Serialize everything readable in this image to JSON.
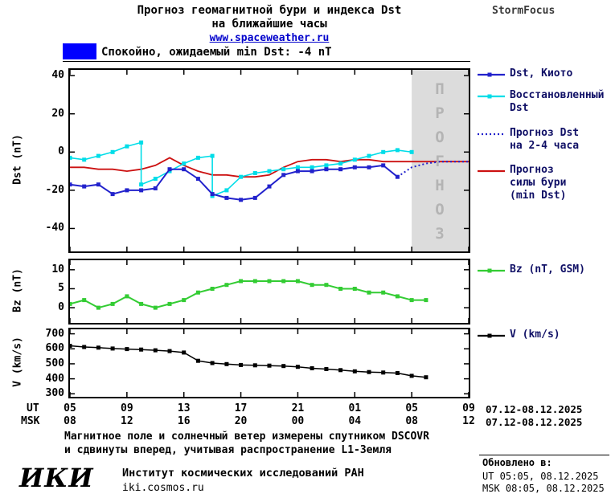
{
  "header": {
    "title_line1": "Прогноз геомагнитной бури и индекса Dst",
    "title_line2": "на ближайшие часы",
    "link": "www.spaceweather.ru",
    "brand": "StormFocus"
  },
  "status": {
    "swatch_color": "#0000ff",
    "text": "Спокойно, ожидаемый min Dst: -4 nT"
  },
  "forecast_band": {
    "label": "ПРОГНОЗ",
    "color": "#dcdcdc",
    "text_color": "#b4b4b4"
  },
  "legend_text_color": "#101066",
  "chart_data": [
    {
      "type": "line",
      "ylabel": "Dst (nT)",
      "ylim": [
        -52,
        43
      ],
      "yticks": [
        40,
        20,
        0,
        -20,
        -40
      ],
      "forecast_start_hour": 24,
      "series": [
        {
          "name": "Прогноз силы бури (min Dst)",
          "color": "#cc1111",
          "marker": false,
          "width": 1.8,
          "x": [
            0,
            1,
            2,
            3,
            4,
            5,
            6,
            7,
            8,
            9,
            10,
            11,
            12,
            13,
            14,
            15,
            16,
            17,
            18,
            19,
            20,
            21,
            22,
            23,
            24,
            25,
            26,
            27,
            28
          ],
          "values": [
            -8,
            -8,
            -9,
            -9,
            -10,
            -9,
            -7,
            -3,
            -7,
            -10,
            -12,
            -12,
            -13,
            -13,
            -12,
            -8,
            -5,
            -4,
            -4,
            -5,
            -4,
            -4,
            -5,
            -5,
            -5,
            -5,
            -5,
            -5,
            -5
          ]
        },
        {
          "name": "Восстановленный Dst",
          "color": "#00dde8",
          "marker": true,
          "width": 1.6,
          "x": [
            0,
            1,
            2,
            3,
            4,
            5,
            5,
            6,
            7,
            8,
            9,
            10,
            10,
            11,
            12,
            13,
            14,
            15,
            16,
            17,
            18,
            19,
            20,
            21,
            22,
            23,
            24
          ],
          "values": [
            -3,
            -4,
            -2,
            0,
            3,
            5,
            -17,
            -14,
            -10,
            -6,
            -3,
            -2,
            -23,
            -20,
            -13,
            -11,
            -10,
            -9,
            -8,
            -8,
            -7,
            -6,
            -4,
            -2,
            0,
            1,
            0
          ]
        },
        {
          "name": "Dst, Киото",
          "color": "#2222cc",
          "marker": true,
          "width": 2,
          "x": [
            0,
            1,
            2,
            3,
            4,
            5,
            6,
            7,
            8,
            9,
            10,
            11,
            12,
            13,
            14,
            15,
            16,
            17,
            18,
            19,
            20,
            21,
            22,
            23
          ],
          "values": [
            -17,
            -18,
            -17,
            -22,
            -20,
            -20,
            -19,
            -9,
            -9,
            -14,
            -22,
            -24,
            -25,
            -24,
            -18,
            -12,
            -10,
            -10,
            -9,
            -9,
            -8,
            -8,
            -7,
            -13
          ]
        },
        {
          "name": "Прогноз Dst на 2-4 часа",
          "color": "#2222cc",
          "marker": false,
          "dotted": true,
          "width": 2,
          "x": [
            23,
            24,
            25,
            26,
            27,
            28
          ],
          "values": [
            -13,
            -8,
            -6,
            -5,
            -5,
            -5
          ]
        }
      ]
    },
    {
      "type": "line",
      "ylabel": "Bz (nT)",
      "ylim": [
        -4,
        12.5
      ],
      "yticks": [
        10,
        5,
        0
      ],
      "series": [
        {
          "name": "Bz (nT, GSM)",
          "color": "#33cc33",
          "marker": true,
          "width": 2,
          "x": [
            0,
            1,
            2,
            3,
            4,
            5,
            6,
            7,
            8,
            9,
            10,
            11,
            12,
            13,
            14,
            15,
            16,
            17,
            18,
            19,
            20,
            21,
            22,
            23,
            24,
            25
          ],
          "values": [
            1,
            2,
            0,
            1,
            3,
            1,
            0,
            1,
            2,
            4,
            5,
            6,
            7,
            7,
            7,
            7,
            7,
            6,
            6,
            5,
            5,
            4,
            4,
            3,
            2,
            2
          ]
        }
      ]
    },
    {
      "type": "line",
      "ylabel": "V (km/s)",
      "ylim": [
        280,
        730
      ],
      "yticks": [
        700,
        600,
        500,
        400,
        300
      ],
      "series": [
        {
          "name": "V (km/s)",
          "color": "#000000",
          "marker": true,
          "width": 1.5,
          "x": [
            0,
            1,
            2,
            3,
            4,
            5,
            6,
            7,
            8,
            9,
            10,
            11,
            12,
            13,
            14,
            15,
            16,
            17,
            18,
            19,
            20,
            21,
            22,
            23,
            24,
            25
          ],
          "values": [
            620,
            612,
            608,
            602,
            598,
            595,
            590,
            585,
            575,
            520,
            505,
            498,
            492,
            490,
            488,
            485,
            480,
            470,
            465,
            458,
            450,
            445,
            442,
            438,
            420,
            410
          ]
        }
      ]
    }
  ],
  "xaxis": {
    "hours_span": 28,
    "tick_hours": [
      0,
      4,
      8,
      12,
      16,
      20,
      24,
      28
    ],
    "ut_label": "UT",
    "msk_label": "MSK",
    "ut_ticks": [
      "05",
      "09",
      "13",
      "17",
      "21",
      "01",
      "05",
      "09"
    ],
    "msk_ticks": [
      "08",
      "12",
      "16",
      "20",
      "00",
      "04",
      "08",
      "12"
    ],
    "ut_date": "07.12-08.12.2025",
    "msk_date": "07.12-08.12.2025"
  },
  "legends": [
    {
      "lines": [
        "Dst, Киото"
      ],
      "color": "#2222cc",
      "style": "solid",
      "marker": true
    },
    {
      "lines": [
        "Восстановленный",
        "Dst"
      ],
      "color": "#00dde8",
      "style": "solid",
      "marker": true
    },
    {
      "lines": [
        "Прогноз Dst",
        "на 2-4 часа"
      ],
      "color": "#2222cc",
      "style": "dotted",
      "marker": false
    },
    {
      "lines": [
        "Прогноз",
        "силы бури",
        "(min Dst)"
      ],
      "color": "#cc1111",
      "style": "solid",
      "marker": false
    },
    {
      "lines": [
        "Bz (nT, GSM)"
      ],
      "color": "#33cc33",
      "style": "solid",
      "marker": true
    },
    {
      "lines": [
        "V (km/s)"
      ],
      "color": "#000000",
      "style": "solid",
      "marker": true
    }
  ],
  "footer": {
    "note_line1": "Магнитное поле и солнечный ветер измерены спутником DSCOVR",
    "note_line2": "и сдвинуты вперед, учитывая распространение L1-Земля",
    "updated_title": "Обновлено в:",
    "updated_ut": "UT  05:05, 08.12.2025",
    "updated_msk": "MSK 08:05, 08.12.2025",
    "logo": "ИКИ",
    "institute": "Институт космических исследований РАН",
    "site": "iki.cosmos.ru"
  }
}
